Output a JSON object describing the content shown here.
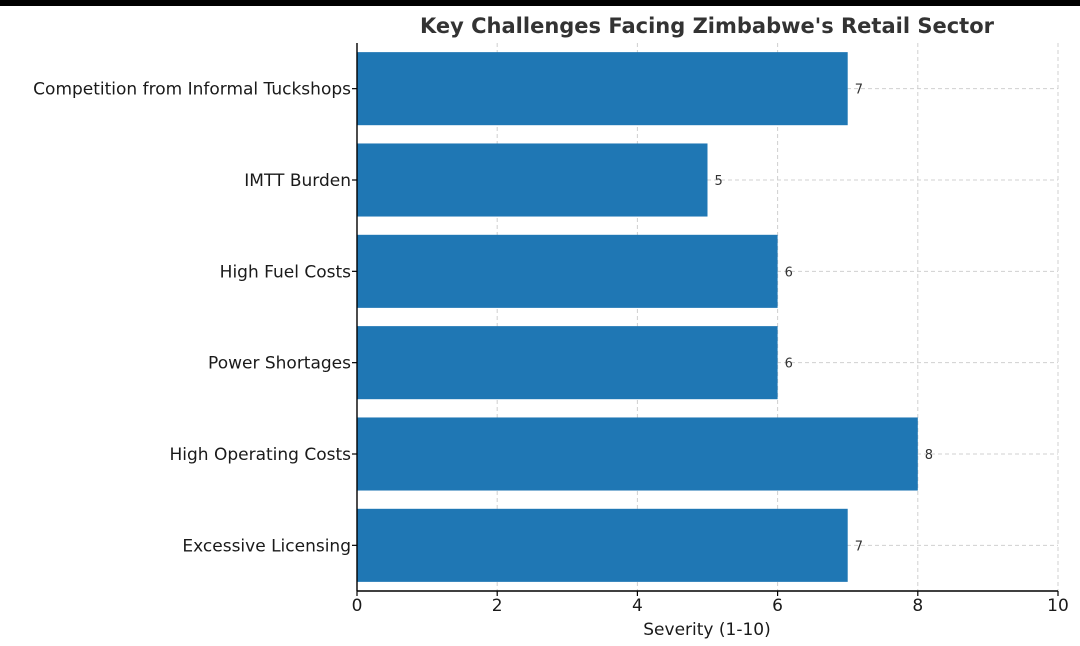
{
  "chart_data": {
    "type": "bar",
    "orientation": "horizontal",
    "title": "Key Challenges Facing Zimbabwe's Retail Sector",
    "xlabel": "Severity (1-10)",
    "ylabel": "",
    "categories": [
      "Competition from Informal Tuckshops",
      "IMTT Burden",
      "High Fuel Costs",
      "Power Shortages",
      "High Operating Costs",
      "Excessive Licensing"
    ],
    "values": [
      7,
      5,
      6,
      6,
      8,
      7
    ],
    "xlim": [
      0,
      10
    ],
    "xticks": [
      0,
      2,
      4,
      6,
      8,
      10
    ],
    "grid": true,
    "bar_color": "#1f77b4"
  }
}
